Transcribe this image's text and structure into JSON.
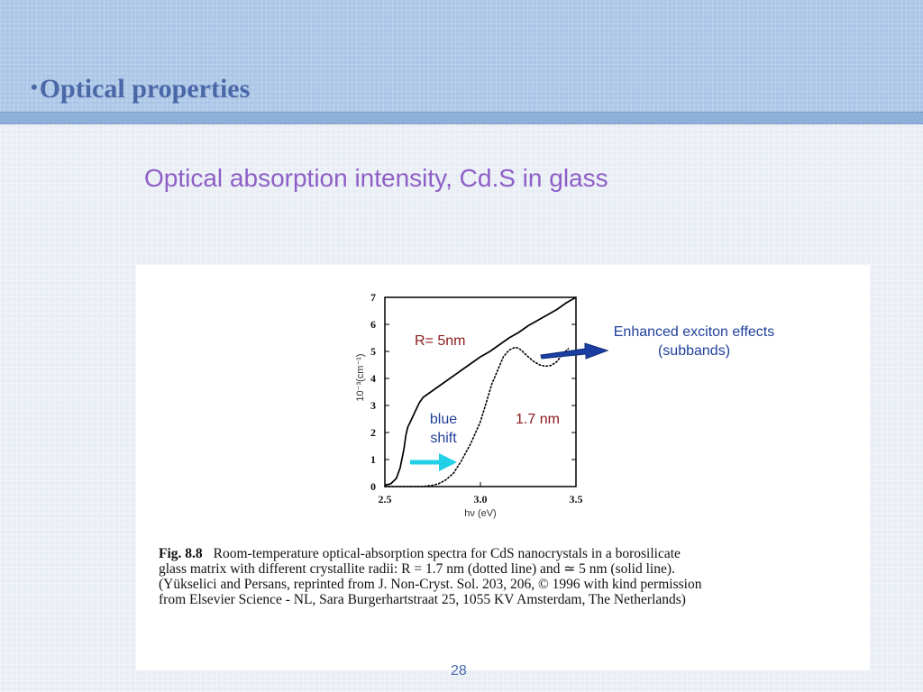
{
  "slide": {
    "bullet": "•",
    "title": "Optical properties",
    "subtitle": "Optical absorption intensity, Cd.S in glass",
    "page_number": "28"
  },
  "colors": {
    "header": "#abc6e6",
    "title": "#4a67a8",
    "subtitle": "#8e5fc8",
    "annotation_red": "#8b1a1a",
    "annotation_blue": "#1f3f9a",
    "arrow_blue": "#1b3fa0",
    "arrow_cyan": "#22d0e8"
  },
  "chart_data": {
    "type": "line",
    "xlabel": "hν (eV)",
    "ylabel": "10⁻³(cm⁻¹)",
    "xlim": [
      2.5,
      3.5
    ],
    "ylim": [
      0,
      7
    ],
    "xticks": [
      "2.5",
      "3.0",
      "3.5"
    ],
    "yticks": [
      "0",
      "1",
      "2",
      "3",
      "4",
      "5",
      "6",
      "7"
    ],
    "series": [
      {
        "name": "R= 5nm",
        "style": "solid",
        "x": [
          2.5,
          2.53,
          2.56,
          2.58,
          2.6,
          2.61,
          2.62,
          2.63,
          2.64,
          2.66,
          2.68,
          2.7,
          2.75,
          2.8,
          2.85,
          2.9,
          2.95,
          3.0,
          3.05,
          3.1,
          3.15,
          3.2,
          3.25,
          3.3,
          3.35,
          3.4,
          3.45,
          3.5
        ],
        "y": [
          0.05,
          0.1,
          0.3,
          0.7,
          1.4,
          1.9,
          2.2,
          2.35,
          2.5,
          2.8,
          3.1,
          3.3,
          3.55,
          3.8,
          4.05,
          4.3,
          4.55,
          4.8,
          5.0,
          5.25,
          5.5,
          5.7,
          5.95,
          6.15,
          6.35,
          6.55,
          6.8,
          7.0
        ]
      },
      {
        "name": "1.7 nm",
        "style": "dotted",
        "x": [
          2.5,
          2.55,
          2.6,
          2.65,
          2.7,
          2.75,
          2.78,
          2.82,
          2.86,
          2.9,
          2.95,
          3.0,
          3.03,
          3.06,
          3.09,
          3.12,
          3.15,
          3.18,
          3.2,
          3.22,
          3.25,
          3.28,
          3.31,
          3.34,
          3.37,
          3.4,
          3.43,
          3.46
        ],
        "y": [
          0.0,
          0.0,
          0.0,
          0.0,
          0.0,
          0.05,
          0.1,
          0.25,
          0.5,
          0.95,
          1.6,
          2.4,
          3.1,
          3.8,
          4.3,
          4.8,
          5.05,
          5.15,
          5.12,
          5.0,
          4.8,
          4.62,
          4.5,
          4.45,
          4.48,
          4.62,
          4.9,
          5.1
        ]
      }
    ],
    "annotations": {
      "r5": "R= 5nm",
      "r17": "1.7 nm",
      "blue_shift_1": "blue",
      "blue_shift_2": "shift",
      "exciton_1": "Enhanced exciton effects",
      "exciton_2": "(subbands)"
    }
  },
  "caption": {
    "label": "Fig. 8.8",
    "line1": "Room-temperature optical-absorption spectra for CdS nanocrystals in a borosilicate",
    "line2": "glass matrix with different crystallite radii: R = 1.7 nm (dotted line) and ≃ 5 nm (solid line).",
    "line3": "(Yükselici and Persans, reprinted from J. Non-Cryst. Sol. 203, 206, © 1996 with kind permission",
    "line4": "from Elsevier Science - NL, Sara Burgerhartstraat 25, 1055 KV Amsterdam, The Netherlands)"
  }
}
